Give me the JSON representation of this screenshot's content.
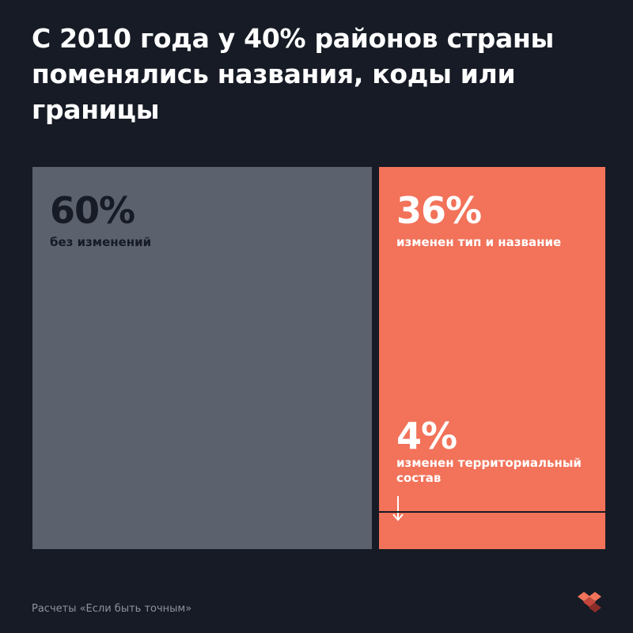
{
  "title": "С 2010 года у 40% районов страны поменялись названия, коды или границы",
  "footer": "Расчеты «Если быть точным»",
  "colors": {
    "background": "#161b25",
    "unchanged": "#5b616d",
    "changed": "#f2725a",
    "unchanged_text": "#161b25",
    "changed_text": "#ffffff"
  },
  "chart_data": {
    "type": "treemap",
    "title": "С 2010 года у 40% районов страны поменялись названия, коды или границы",
    "unit": "%",
    "segments": [
      {
        "label": "без изменений",
        "value": 60,
        "value_label": "60%",
        "color": "#5b616d"
      },
      {
        "label": "изменен тип и название",
        "value": 36,
        "value_label": "36%",
        "color": "#f2725a"
      },
      {
        "label": "изменен территориальный состав",
        "value": 4,
        "value_label": "4%",
        "color": "#f2725a"
      }
    ]
  },
  "icons": {
    "logo": "esli-byt-tochnym-logo-icon",
    "arrow": "arrow-down-icon"
  }
}
